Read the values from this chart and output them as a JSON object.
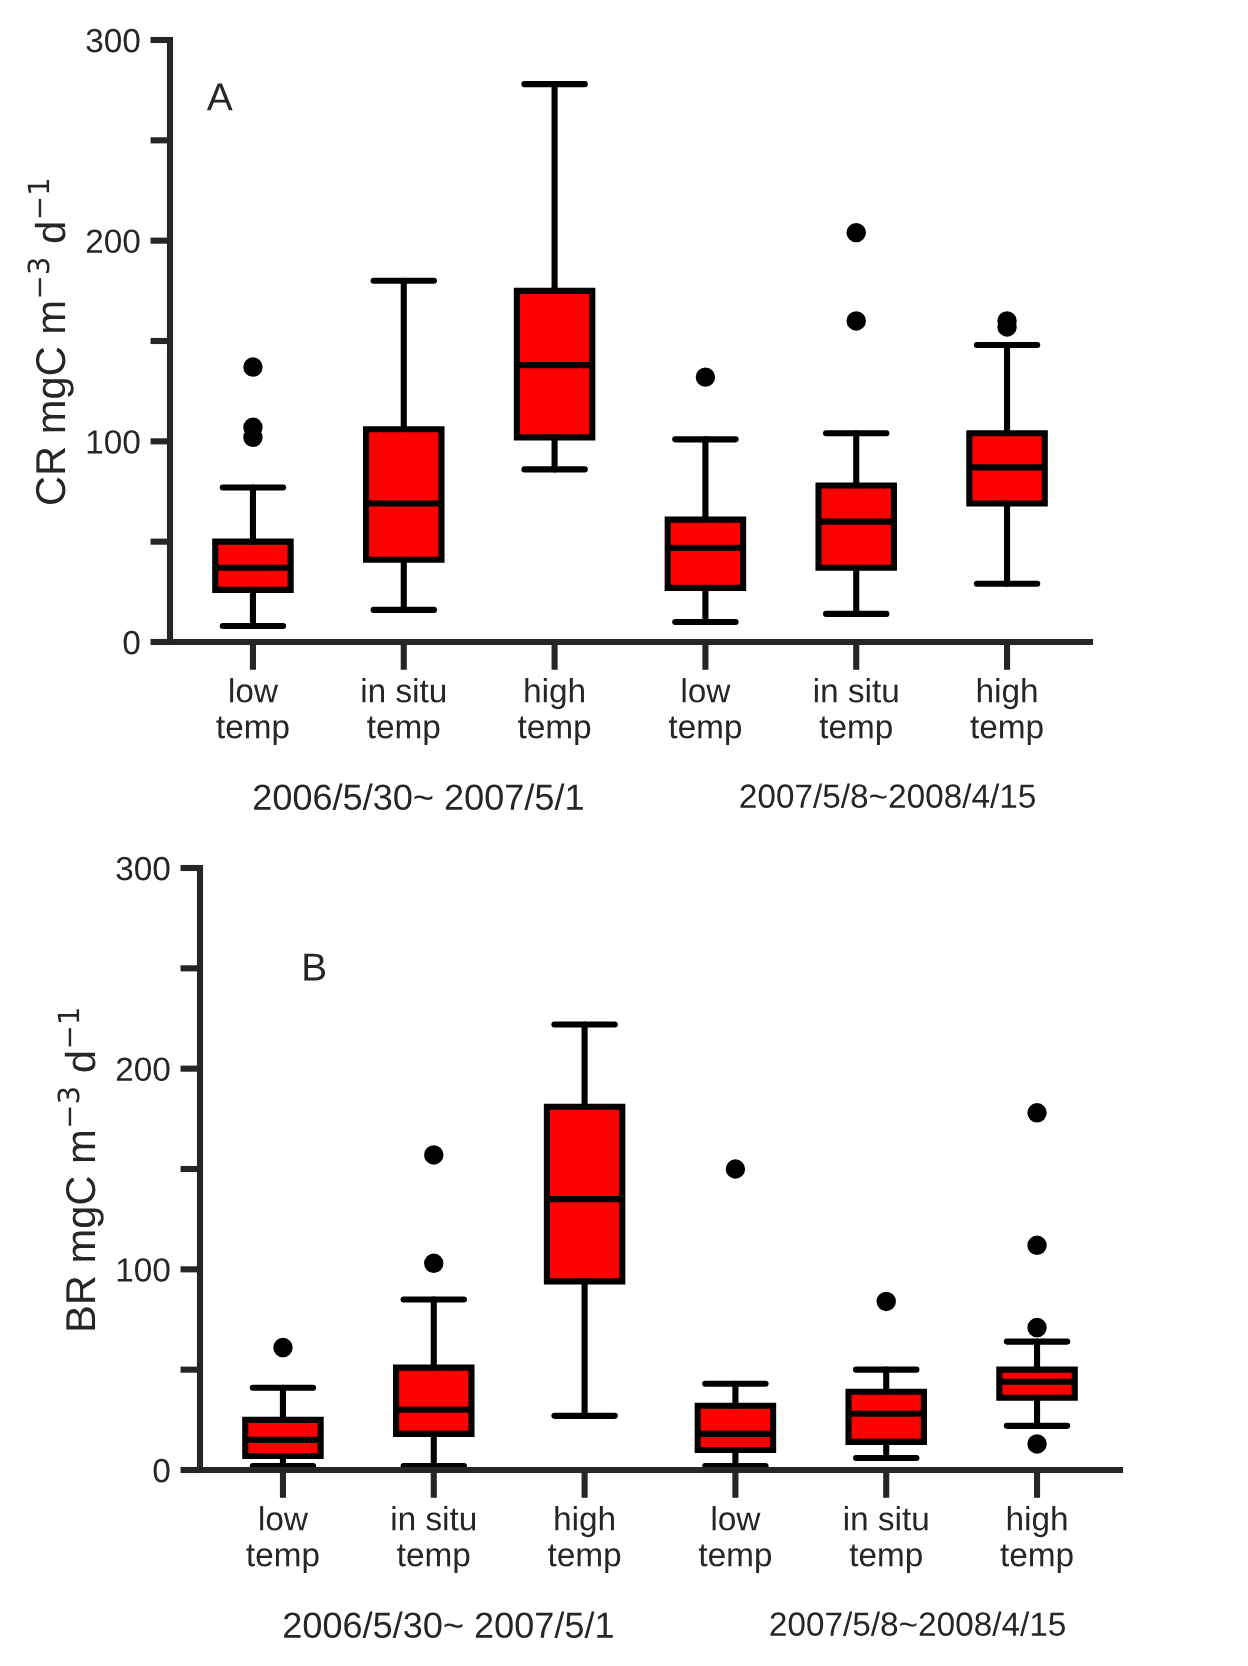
{
  "chart_data": [
    {
      "type": "box",
      "ylabel": "CR mgC m$^{−3}$ d$^{−1}$",
      "categories": [
        "low\ntemp",
        "in situ\ntemp",
        "high\ntemp",
        "low\ntemp",
        "in situ\ntemp",
        "high\ntemp"
      ],
      "color": "#ff0000",
      "ylim": [
        0,
        300
      ],
      "yticks": [
        0,
        {
          "value": 50,
          "label": null
        },
        100,
        {
          "value": 150,
          "label": null
        },
        200,
        {
          "value": 250,
          "label": null
        },
        300
      ],
      "grid": false,
      "annotations": [
        "A",
        "2006/5/30~ 2007/5/1",
        "2007/5/8~2008/4/15"
      ],
      "boxes": [
        {
          "low": 8,
          "q1": 26,
          "median": 37,
          "q3": 50,
          "high": 77,
          "outliers": [
            102,
            107,
            137
          ]
        },
        {
          "low": 16,
          "q1": 41,
          "median": 69,
          "q3": 106,
          "high": 180
        },
        {
          "low": 86,
          "q1": 102,
          "median": 138,
          "q3": 175,
          "high": 278
        },
        {
          "low": 10,
          "q1": 27,
          "median": 47,
          "q3": 61,
          "high": 101,
          "outliers": [
            132
          ]
        },
        {
          "low": 14,
          "q1": 37,
          "median": 60,
          "q3": 78,
          "high": 104,
          "outliers": [
            160,
            204
          ]
        },
        {
          "low": 29,
          "q1": 69,
          "median": 87,
          "q3": 104,
          "high": 148,
          "outliers": [
            157,
            160
          ]
        }
      ]
    },
    {
      "type": "box",
      "ylabel": "BR mgC m$^{−3}$ d$^{−1}$",
      "categories": [
        "low\ntemp",
        "in situ\ntemp",
        "high\ntemp",
        "low\ntemp",
        "in situ\ntemp",
        "high\ntemp"
      ],
      "color": "#ff0000",
      "ylim": [
        0,
        300
      ],
      "yticks": [
        0,
        {
          "value": 50,
          "label": null
        },
        100,
        {
          "value": 150,
          "label": null
        },
        200,
        {
          "value": 250,
          "label": null
        },
        300
      ],
      "grid": false,
      "annotations": [
        "B",
        "2006/5/30~ 2007/5/1",
        "2007/5/8~2008/4/15"
      ],
      "boxes": [
        {
          "low": 2,
          "q1": 7,
          "median": 15,
          "q3": 25,
          "high": 41,
          "outliers": [
            61
          ]
        },
        {
          "low": 2,
          "q1": 18,
          "median": 30,
          "q3": 51,
          "high": 85,
          "outliers": [
            103,
            157
          ]
        },
        {
          "low": 27,
          "q1": 94,
          "median": 135,
          "q3": 181,
          "high": 222
        },
        {
          "low": 2,
          "q1": 10,
          "median": 18,
          "q3": 32,
          "high": 43,
          "outliers": [
            150
          ]
        },
        {
          "low": 6,
          "q1": 14,
          "median": 28,
          "q3": 39,
          "high": 50,
          "outliers": [
            84
          ]
        },
        {
          "low": 22,
          "q1": 36,
          "median": 44,
          "q3": 50,
          "high": 64,
          "outliers": [
            13,
            71,
            112,
            178
          ]
        }
      ]
    }
  ]
}
